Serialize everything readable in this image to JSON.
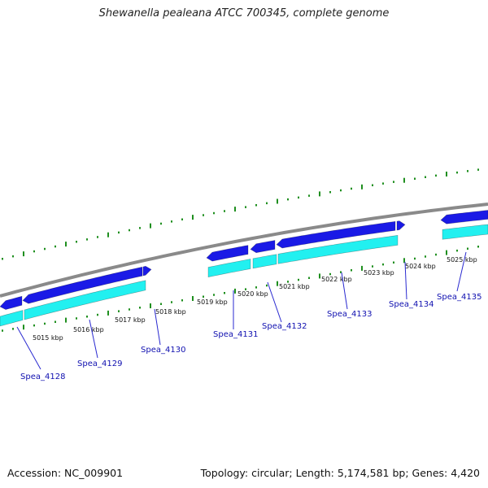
{
  "title": "Shewanella pealeana ATCC 700345, complete genome",
  "footer": {
    "accession": "Accession: NC_009901",
    "topology": "Topology: circular; Length: 5,174,581 bp; Genes: 4,420"
  },
  "colors": {
    "backbone": "#8a8a8a",
    "gene_blue": "#1a1ae6",
    "gene_cyan": "#22f0f0",
    "tick_green": "#1f8f1f",
    "label_blue": "#1010b0",
    "leader": "#2a2ad0"
  },
  "kbp_labels": [
    "5015 kbp",
    "5016 kbp",
    "5017 kbp",
    "5018 kbp",
    "5019 kbp",
    "5020 kbp",
    "5021 kbp",
    "5022 kbp",
    "5023 kbp",
    "5024 kbp",
    "5025 kbp"
  ],
  "gene_labels": [
    "Spea_4128",
    "Spea_4129",
    "Spea_4130",
    "Spea_4131",
    "Spea_4132",
    "Spea_4133",
    "Spea_4134",
    "Spea_4135"
  ]
}
